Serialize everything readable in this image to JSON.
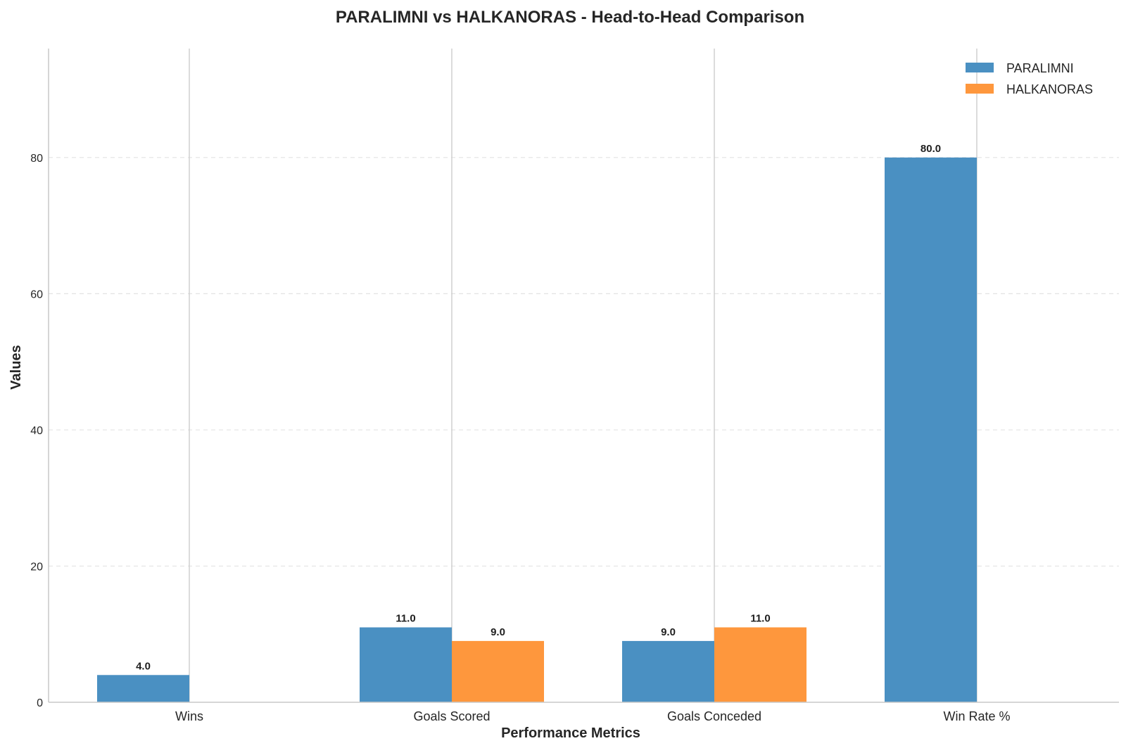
{
  "chart_data": {
    "type": "bar",
    "title": "PARALIMNI vs HALKANORAS - Head-to-Head Comparison",
    "xlabel": "Performance Metrics",
    "ylabel": "Values",
    "categories": [
      "Wins",
      "Goals Scored",
      "Goals Conceded",
      "Win Rate %"
    ],
    "series": [
      {
        "name": "PARALIMNI",
        "values": [
          4.0,
          11.0,
          9.0,
          80.0
        ],
        "labels": [
          "4.0",
          "11.0",
          "9.0",
          "80.0"
        ],
        "color": "#4a90c2"
      },
      {
        "name": "HALKANORAS",
        "values": [
          0,
          9.0,
          11.0,
          0
        ],
        "labels": [
          null,
          "9.0",
          "11.0",
          null
        ],
        "color": "#fe973d"
      }
    ],
    "yticks": [
      "0",
      "20",
      "40",
      "60",
      "80"
    ],
    "ylim": [
      0,
      96
    ],
    "grid": true,
    "legend_position": "top-right"
  }
}
